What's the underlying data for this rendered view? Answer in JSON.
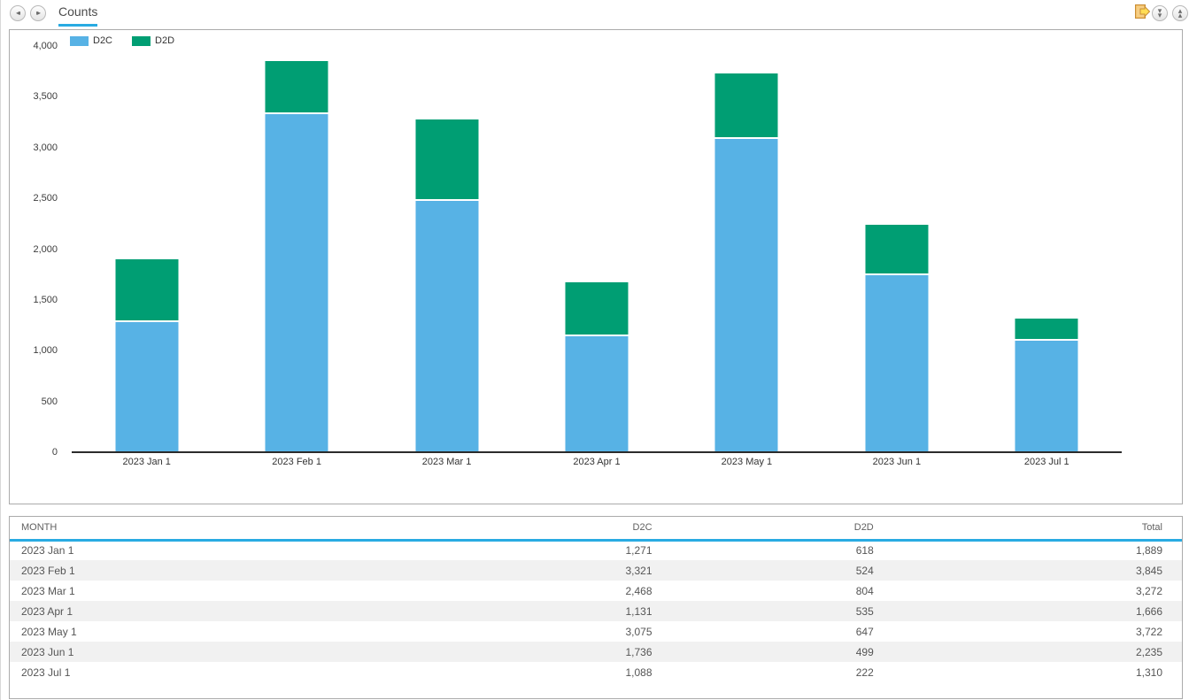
{
  "toolbar": {
    "tab_label": "Counts",
    "icons": [
      "rewind-icon",
      "fast-forward-icon",
      "export-icon",
      "collapse-all-icon",
      "expand-all-icon"
    ]
  },
  "colors": {
    "accent_blue": "#29ABE2",
    "bar_blue": "#57B2E5",
    "bar_green": "#009E73",
    "axis_line": "#2b2b2b",
    "row_stripe": "#f1f1f1",
    "panel_border": "#ababab"
  },
  "chart_data": {
    "type": "bar",
    "stacked": true,
    "title": "",
    "xlabel": "",
    "ylabel": "",
    "categories": [
      "2023 Jan 1",
      "2023 Feb 1",
      "2023 Mar 1",
      "2023 Apr 1",
      "2023 May 1",
      "2023 Jun 1",
      "2023 Jul 1"
    ],
    "series": [
      {
        "name": "D2C",
        "color": "#57B2E5",
        "values": [
          1271,
          3321,
          2468,
          1131,
          3075,
          1736,
          1088
        ]
      },
      {
        "name": "D2D",
        "color": "#009E73",
        "values": [
          618,
          524,
          804,
          535,
          647,
          499,
          222
        ]
      }
    ],
    "totals": [
      1889,
      3845,
      3272,
      1666,
      3722,
      2235,
      1310
    ],
    "ylim": [
      0,
      4000
    ],
    "ytick_interval": 500,
    "ytick_labels": [
      "0",
      "500",
      "1,000",
      "1,500",
      "2,000",
      "2,500",
      "3,000",
      "3,500",
      "4,000"
    ],
    "legend_position": "top-left",
    "grid": false
  },
  "table": {
    "columns": [
      "MONTH",
      "D2C",
      "D2D",
      "Total"
    ],
    "rows": [
      [
        "2023 Jan 1",
        "1,271",
        "618",
        "1,889"
      ],
      [
        "2023 Feb 1",
        "3,321",
        "524",
        "3,845"
      ],
      [
        "2023 Mar 1",
        "2,468",
        "804",
        "3,272"
      ],
      [
        "2023 Apr 1",
        "1,131",
        "535",
        "1,666"
      ],
      [
        "2023 May 1",
        "3,075",
        "647",
        "3,722"
      ],
      [
        "2023 Jun 1",
        "1,736",
        "499",
        "2,235"
      ],
      [
        "2023 Jul 1",
        "1,088",
        "222",
        "1,310"
      ]
    ]
  }
}
